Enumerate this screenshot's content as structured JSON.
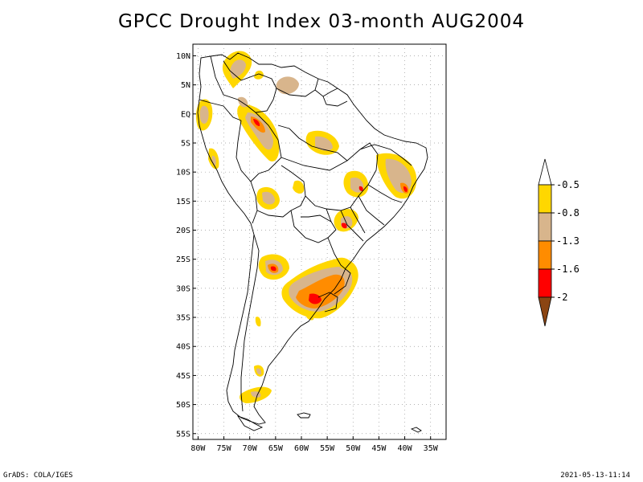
{
  "title": "GPCC Drought Index 03-month AUG2004",
  "map": {
    "lon_range": [
      -81,
      -32
    ],
    "lat_range": [
      -56,
      12
    ],
    "lat_ticks": [
      {
        "value": 10,
        "label": "10N"
      },
      {
        "value": 5,
        "label": "5N"
      },
      {
        "value": 0,
        "label": "EQ"
      },
      {
        "value": -5,
        "label": "5S"
      },
      {
        "value": -10,
        "label": "10S"
      },
      {
        "value": -15,
        "label": "15S"
      },
      {
        "value": -20,
        "label": "20S"
      },
      {
        "value": -25,
        "label": "25S"
      },
      {
        "value": -30,
        "label": "30S"
      },
      {
        "value": -35,
        "label": "35S"
      },
      {
        "value": -40,
        "label": "40S"
      },
      {
        "value": -45,
        "label": "45S"
      },
      {
        "value": -50,
        "label": "50S"
      },
      {
        "value": -55,
        "label": "55S"
      }
    ],
    "lon_ticks": [
      {
        "value": -80,
        "label": "80W"
      },
      {
        "value": -75,
        "label": "75W"
      },
      {
        "value": -70,
        "label": "70W"
      },
      {
        "value": -65,
        "label": "65W"
      },
      {
        "value": -60,
        "label": "60W"
      },
      {
        "value": -55,
        "label": "55W"
      },
      {
        "value": -50,
        "label": "50W"
      },
      {
        "value": -45,
        "label": "45W"
      },
      {
        "value": -40,
        "label": "40W"
      },
      {
        "value": -35,
        "label": "35W"
      }
    ]
  },
  "legend": {
    "labels": [
      "-0.5",
      "-0.8",
      "-1.3",
      "-1.6",
      "-2"
    ],
    "colors": {
      "above_top": "#ffffff",
      "band1": "#ffd700",
      "band2": "#d8b58c",
      "band3": "#ff8c00",
      "band4": "#ff0000",
      "below_bottom": "#8b4513"
    }
  },
  "footer": {
    "left": "GrADS: COLA/IGES",
    "right": "2021-05-13-11:14"
  }
}
